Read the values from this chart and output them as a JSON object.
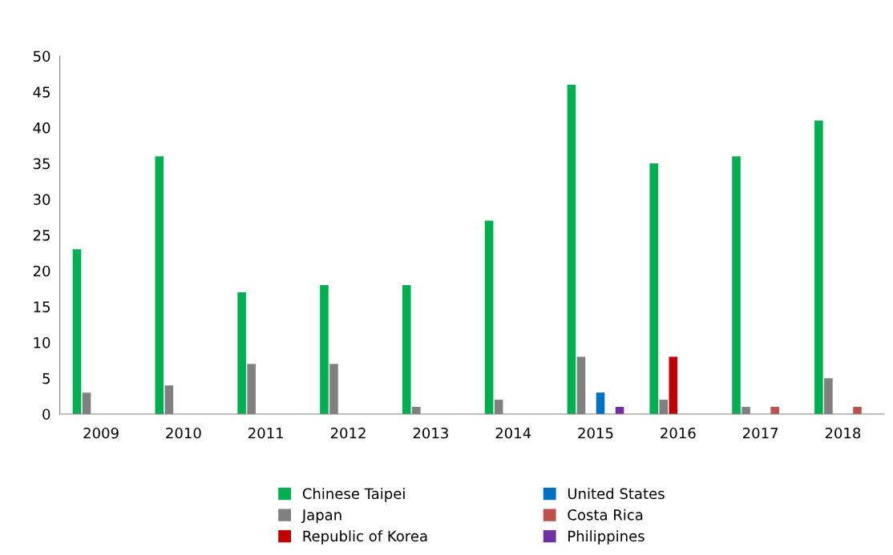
{
  "chart_data": {
    "type": "bar",
    "categories": [
      "2009",
      "2010",
      "2011",
      "2012",
      "2013",
      "2014",
      "2015",
      "2016",
      "2017",
      "2018"
    ],
    "series": [
      {
        "name": "Chinese Taipei",
        "color": "#00b050",
        "values": [
          23,
          36,
          17,
          18,
          18,
          27,
          46,
          35,
          36,
          41
        ]
      },
      {
        "name": "Japan",
        "color": "#808080",
        "values": [
          3,
          4,
          7,
          7,
          1,
          2,
          8,
          2,
          1,
          5
        ]
      },
      {
        "name": "Republic of Korea",
        "color": "#c00000",
        "values": [
          0,
          0,
          0,
          0,
          0,
          0,
          0,
          8,
          0,
          0
        ]
      },
      {
        "name": "United States",
        "color": "#0070c0",
        "values": [
          0,
          0,
          0,
          0,
          0,
          0,
          3,
          0,
          0,
          0
        ]
      },
      {
        "name": "Costa Rica",
        "color": "#c0504d",
        "values": [
          0,
          0,
          0,
          0,
          0,
          0,
          0,
          0,
          1,
          1
        ]
      },
      {
        "name": "Philippines",
        "color": "#7030a0",
        "values": [
          0,
          0,
          0,
          0,
          0,
          0,
          1,
          0,
          0,
          0
        ]
      }
    ],
    "ylim": [
      0,
      50
    ],
    "yticks": [
      0,
      5,
      10,
      15,
      20,
      25,
      30,
      35,
      40,
      45,
      50
    ],
    "grid": false,
    "legend": "bottom"
  }
}
